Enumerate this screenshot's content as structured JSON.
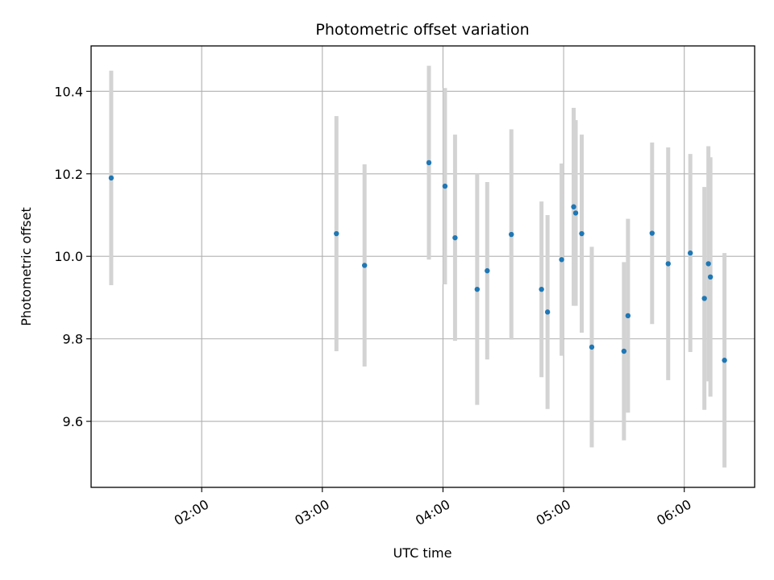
{
  "chart_data": {
    "type": "scatter",
    "title": "Photometric offset variation",
    "xlabel": "UTC time",
    "ylabel": "Photometric offset",
    "x_ticks": [
      "02:00",
      "03:00",
      "04:00",
      "05:00",
      "06:00"
    ],
    "y_ticks": [
      "9.6",
      "9.8",
      "10.0",
      "10.2",
      "10.4"
    ],
    "xlim": [
      "01:05",
      "06:35"
    ],
    "ylim": [
      9.44,
      10.51
    ],
    "grid": true,
    "colors": {
      "point": "#1f77b4",
      "errorbar": "#d3d3d3",
      "grid": "#b0b0b0"
    },
    "points": [
      {
        "x": "01:15",
        "y": 10.19,
        "err": 0.26
      },
      {
        "x": "03:07",
        "y": 10.055,
        "err": 0.285
      },
      {
        "x": "03:21",
        "y": 9.978,
        "err": 0.245
      },
      {
        "x": "03:53",
        "y": 10.227,
        "err": 0.235
      },
      {
        "x": "04:01",
        "y": 10.17,
        "err": 0.238
      },
      {
        "x": "04:06",
        "y": 10.045,
        "err": 0.25
      },
      {
        "x": "04:17",
        "y": 9.92,
        "err": 0.28
      },
      {
        "x": "04:22",
        "y": 9.965,
        "err": 0.215
      },
      {
        "x": "04:34",
        "y": 10.053,
        "err": 0.255
      },
      {
        "x": "04:49",
        "y": 9.92,
        "err": 0.213
      },
      {
        "x": "04:52",
        "y": 9.865,
        "err": 0.235
      },
      {
        "x": "04:59",
        "y": 9.992,
        "err": 0.233
      },
      {
        "x": "05:05",
        "y": 10.12,
        "err": 0.24
      },
      {
        "x": "05:06",
        "y": 10.105,
        "err": 0.225
      },
      {
        "x": "05:09",
        "y": 10.055,
        "err": 0.24
      },
      {
        "x": "05:14",
        "y": 9.78,
        "err": 0.243
      },
      {
        "x": "05:30",
        "y": 9.77,
        "err": 0.216
      },
      {
        "x": "05:32",
        "y": 9.856,
        "err": 0.235
      },
      {
        "x": "05:44",
        "y": 10.056,
        "err": 0.22
      },
      {
        "x": "05:52",
        "y": 9.982,
        "err": 0.282
      },
      {
        "x": "06:03",
        "y": 10.008,
        "err": 0.24
      },
      {
        "x": "06:10",
        "y": 9.898,
        "err": 0.27
      },
      {
        "x": "06:12",
        "y": 9.982,
        "err": 0.285
      },
      {
        "x": "06:13",
        "y": 9.95,
        "err": 0.29
      },
      {
        "x": "06:20",
        "y": 9.748,
        "err": 0.26
      }
    ]
  }
}
